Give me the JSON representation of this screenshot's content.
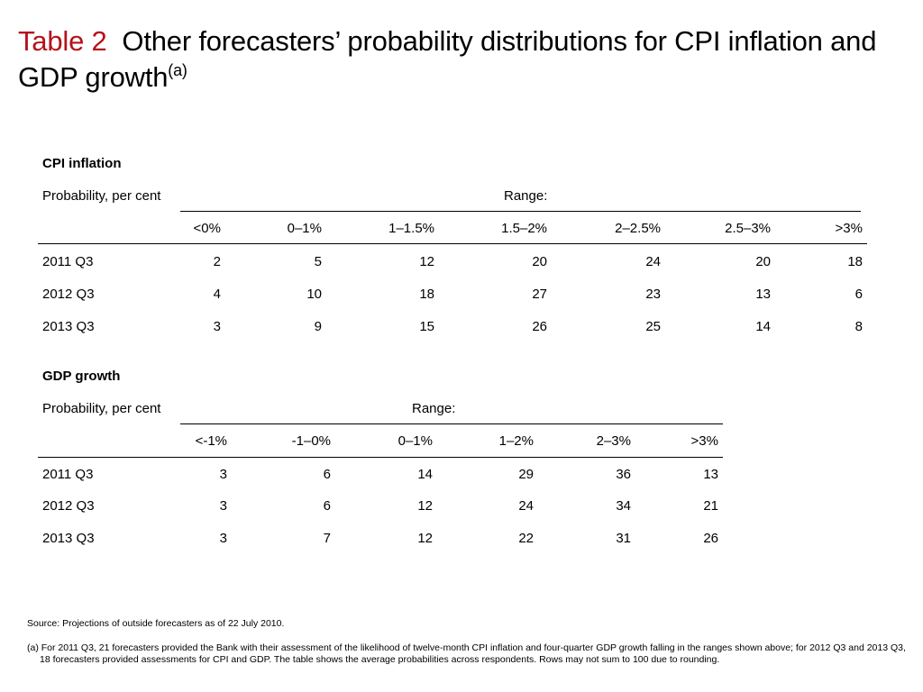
{
  "title": {
    "number": "Table 2",
    "text": "Other forecasters’ probability distributions for CPI inflation and GDP growth",
    "superscript": "(a)"
  },
  "colors": {
    "title_number": "#b5121b"
  },
  "cpi": {
    "heading": "CPI inflation",
    "probability_label": "Probability, per cent",
    "range_label": "Range:",
    "columns": [
      "<0%",
      "0–1%",
      "1–1.5%",
      "1.5–2%",
      "2–2.5%",
      "2.5–3%",
      ">3%"
    ],
    "rows": [
      {
        "label": "2011 Q3",
        "values": [
          "2",
          "5",
          "12",
          "20",
          "24",
          "20",
          "18"
        ]
      },
      {
        "label": "2012 Q3",
        "values": [
          "4",
          "10",
          "18",
          "27",
          "23",
          "13",
          "6"
        ]
      },
      {
        "label": "2013 Q3",
        "values": [
          "3",
          "9",
          "15",
          "26",
          "25",
          "14",
          "8"
        ]
      }
    ]
  },
  "gdp": {
    "heading": "GDP growth",
    "probability_label": "Probability, per cent",
    "range_label": "Range:",
    "columns": [
      "<-1%",
      "-1–0%",
      "0–1%",
      "1–2%",
      "2–3%",
      ">3%"
    ],
    "rows": [
      {
        "label": "2011 Q3",
        "values": [
          "3",
          "6",
          "14",
          "29",
          "36",
          "13"
        ]
      },
      {
        "label": "2012 Q3",
        "values": [
          "3",
          "6",
          "12",
          "24",
          "34",
          "21"
        ]
      },
      {
        "label": "2013 Q3",
        "values": [
          "3",
          "7",
          "12",
          "22",
          "31",
          "26"
        ]
      }
    ]
  },
  "footnotes": {
    "source": "Source:  Projections of outside forecasters as of 22 July 2010.",
    "note": "(a) For 2011 Q3, 21 forecasters provided the Bank with their assessment of the likelihood of twelve-month CPI inflation and four-quarter GDP growth falling in the ranges shown above;  for 2012 Q3 and 2013 Q3, 18 forecasters provided assessments for CPI and GDP.  The table shows the average probabilities across respondents.  Rows may not sum to 100 due to rounding."
  }
}
